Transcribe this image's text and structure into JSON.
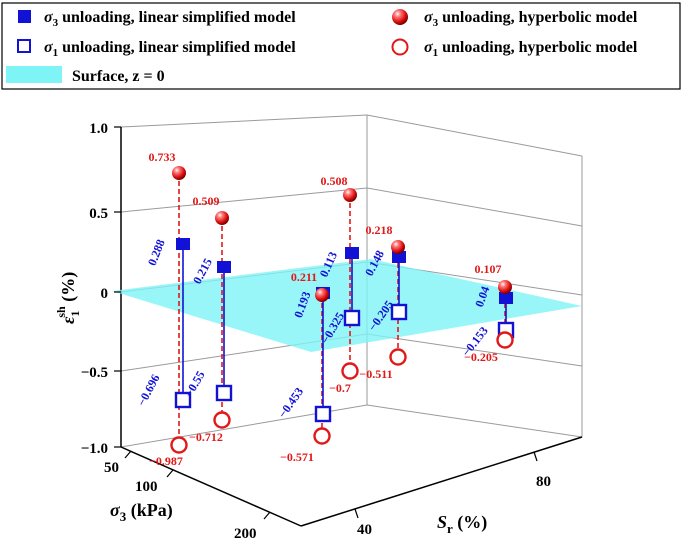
{
  "colors": {
    "blue": "#1212d6",
    "red": "#e01818",
    "surface": "#7ff4f6"
  },
  "chart_data": {
    "type": "scatter3d",
    "title": "",
    "legend": [
      {
        "pre": "σ",
        "sub": "3",
        "post": " unloading, linear simplified model",
        "marker": "blue-filled-square"
      },
      {
        "pre": "σ",
        "sub": "3",
        "post": " unloading, hyperbolic model",
        "marker": "red-sphere"
      },
      {
        "pre": "σ",
        "sub": "1",
        "post": " unloading, linear simplified model",
        "marker": "blue-open-square"
      },
      {
        "pre": "σ",
        "sub": "1",
        "post": " unloading, hyperbolic model",
        "marker": "red-open-circle"
      },
      {
        "pre": "Surface, z = 0",
        "sub": "",
        "post": "",
        "marker": "cyan-surface"
      }
    ],
    "zlabel": {
      "main": "ε",
      "sub": "1",
      "sup": "sh",
      "unit": " (%)"
    },
    "xlabel": {
      "main": "σ",
      "sub": "3",
      "unit": " (kPa)"
    },
    "ylabel": {
      "main": "S",
      "sub": "r",
      "unit": " (%)"
    },
    "zlim": [
      -1.0,
      1.0
    ],
    "zticks": [
      "1.0",
      "0.5",
      "0",
      "−0.5",
      "−1.0"
    ],
    "xticks": [
      "50",
      "100",
      "200"
    ],
    "yticks": [
      "40",
      "80"
    ],
    "series": [
      {
        "name": "σ3 unloading, linear simplified model",
        "values": [
          "0.288",
          "0.215",
          "0.193",
          "0.113",
          "0.148",
          "0.04"
        ]
      },
      {
        "name": "σ3 unloading, hyperbolic model",
        "values": [
          "0.733",
          "0.509",
          "0.211",
          "0.508",
          "0.218",
          "0.107"
        ]
      },
      {
        "name": "σ1 unloading, linear simplified model",
        "values": [
          "−0.696",
          "−0.55",
          "−0.453",
          "−0.325",
          "−0.205",
          "−0.153"
        ]
      },
      {
        "name": "σ1 unloading, hyperbolic model",
        "values": [
          "−0.987",
          "−0.712",
          "−0.571",
          "−0.7",
          "−0.511",
          "−0.205"
        ]
      }
    ]
  }
}
